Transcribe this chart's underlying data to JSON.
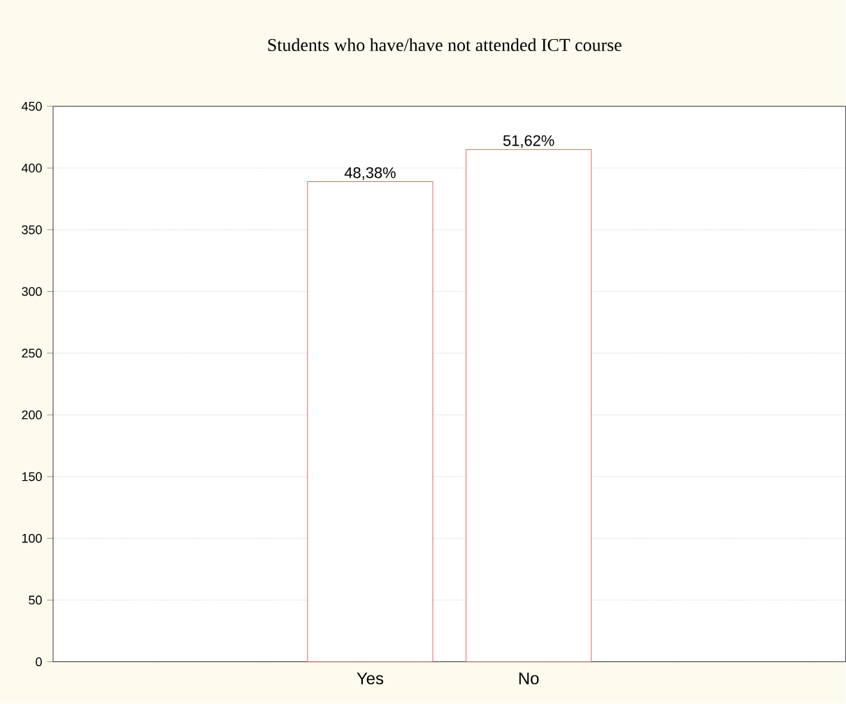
{
  "chart_data": {
    "type": "bar",
    "title": "Students who have/have not attended ICT course",
    "categories": [
      "Yes",
      "No"
    ],
    "values": [
      389,
      415
    ],
    "annotations": [
      "48,38%",
      "51,62%"
    ],
    "color": "#e8383d",
    "ylim": [
      0,
      450
    ],
    "yticks": [
      0,
      50,
      100,
      150,
      200,
      250,
      300,
      350,
      400,
      450
    ],
    "grid": "y"
  }
}
